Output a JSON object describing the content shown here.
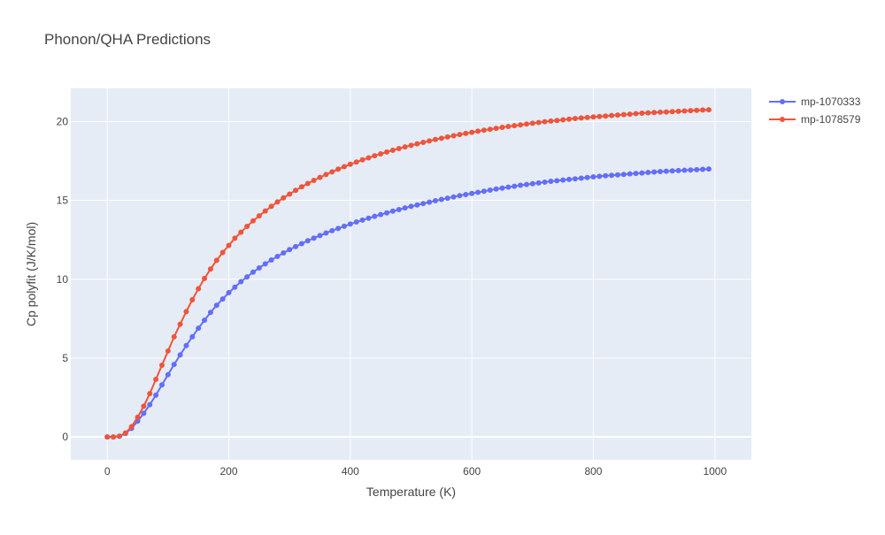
{
  "chart_data": {
    "type": "line",
    "title": "Phonon/QHA Predictions",
    "xlabel": "Temperature (K)",
    "ylabel": "Cp polyfit (J/K/mol)",
    "xlim": [
      -60,
      1060
    ],
    "ylim": [
      -1.45,
      22.1
    ],
    "xticks": [
      0,
      200,
      400,
      600,
      800,
      1000
    ],
    "yticks": [
      0,
      5,
      10,
      15,
      20
    ],
    "grid": true,
    "legend_position": "top-right",
    "x": [
      0,
      10,
      20,
      30,
      40,
      50,
      60,
      70,
      80,
      90,
      100,
      110,
      120,
      130,
      140,
      150,
      160,
      170,
      180,
      190,
      200,
      210,
      220,
      230,
      240,
      250,
      260,
      270,
      280,
      290,
      300,
      310,
      320,
      330,
      340,
      350,
      360,
      370,
      380,
      390,
      400,
      410,
      420,
      430,
      440,
      450,
      460,
      470,
      480,
      490,
      500,
      510,
      520,
      530,
      540,
      550,
      560,
      570,
      580,
      590,
      600,
      610,
      620,
      630,
      640,
      650,
      660,
      670,
      680,
      690,
      700,
      710,
      720,
      730,
      740,
      750,
      760,
      770,
      780,
      790,
      800,
      810,
      820,
      830,
      840,
      850,
      860,
      870,
      880,
      890,
      900,
      910,
      920,
      930,
      940,
      950,
      960,
      970,
      980,
      990
    ],
    "series": [
      {
        "name": "mp-1070333",
        "color": "#636efa",
        "values": [
          0.0,
          0.0,
          0.05,
          0.22,
          0.55,
          1.0,
          1.5,
          2.05,
          2.65,
          3.3,
          3.95,
          4.6,
          5.2,
          5.8,
          6.35,
          6.9,
          7.4,
          7.9,
          8.35,
          8.75,
          9.15,
          9.5,
          9.85,
          10.15,
          10.45,
          10.72,
          10.98,
          11.22,
          11.45,
          11.67,
          11.88,
          12.07,
          12.26,
          12.44,
          12.61,
          12.77,
          12.93,
          13.08,
          13.22,
          13.36,
          13.5,
          13.63,
          13.75,
          13.87,
          13.99,
          14.1,
          14.21,
          14.32,
          14.42,
          14.52,
          14.62,
          14.71,
          14.8,
          14.89,
          14.98,
          15.06,
          15.14,
          15.22,
          15.3,
          15.37,
          15.44,
          15.51,
          15.58,
          15.65,
          15.72,
          15.78,
          15.84,
          15.9,
          15.96,
          16.01,
          16.06,
          16.11,
          16.16,
          16.21,
          16.25,
          16.29,
          16.33,
          16.37,
          16.41,
          16.45,
          16.49,
          16.53,
          16.56,
          16.59,
          16.62,
          16.65,
          16.68,
          16.71,
          16.74,
          16.77,
          16.8,
          16.83,
          16.85,
          16.87,
          16.89,
          16.91,
          16.93,
          16.95,
          16.97,
          16.99
        ]
      },
      {
        "name": "mp-1078579",
        "color": "#ef553b",
        "values": [
          0.0,
          0.0,
          0.05,
          0.25,
          0.65,
          1.25,
          1.95,
          2.75,
          3.65,
          4.55,
          5.45,
          6.35,
          7.15,
          7.95,
          8.7,
          9.4,
          10.05,
          10.65,
          11.2,
          11.7,
          12.15,
          12.6,
          12.98,
          13.35,
          13.7,
          14.02,
          14.33,
          14.62,
          14.9,
          15.16,
          15.4,
          15.64,
          15.86,
          16.07,
          16.27,
          16.46,
          16.64,
          16.81,
          16.98,
          17.14,
          17.29,
          17.43,
          17.57,
          17.7,
          17.83,
          17.95,
          18.07,
          18.18,
          18.29,
          18.39,
          18.49,
          18.59,
          18.68,
          18.77,
          18.86,
          18.94,
          19.02,
          19.1,
          19.18,
          19.25,
          19.32,
          19.39,
          19.45,
          19.51,
          19.57,
          19.63,
          19.69,
          19.74,
          19.79,
          19.84,
          19.89,
          19.94,
          19.99,
          20.03,
          20.07,
          20.11,
          20.15,
          20.19,
          20.23,
          20.26,
          20.29,
          20.32,
          20.35,
          20.38,
          20.41,
          20.44,
          20.47,
          20.5,
          20.53,
          20.55,
          20.57,
          20.59,
          20.61,
          20.63,
          20.65,
          20.67,
          20.69,
          20.71,
          20.73,
          20.75
        ]
      }
    ]
  }
}
